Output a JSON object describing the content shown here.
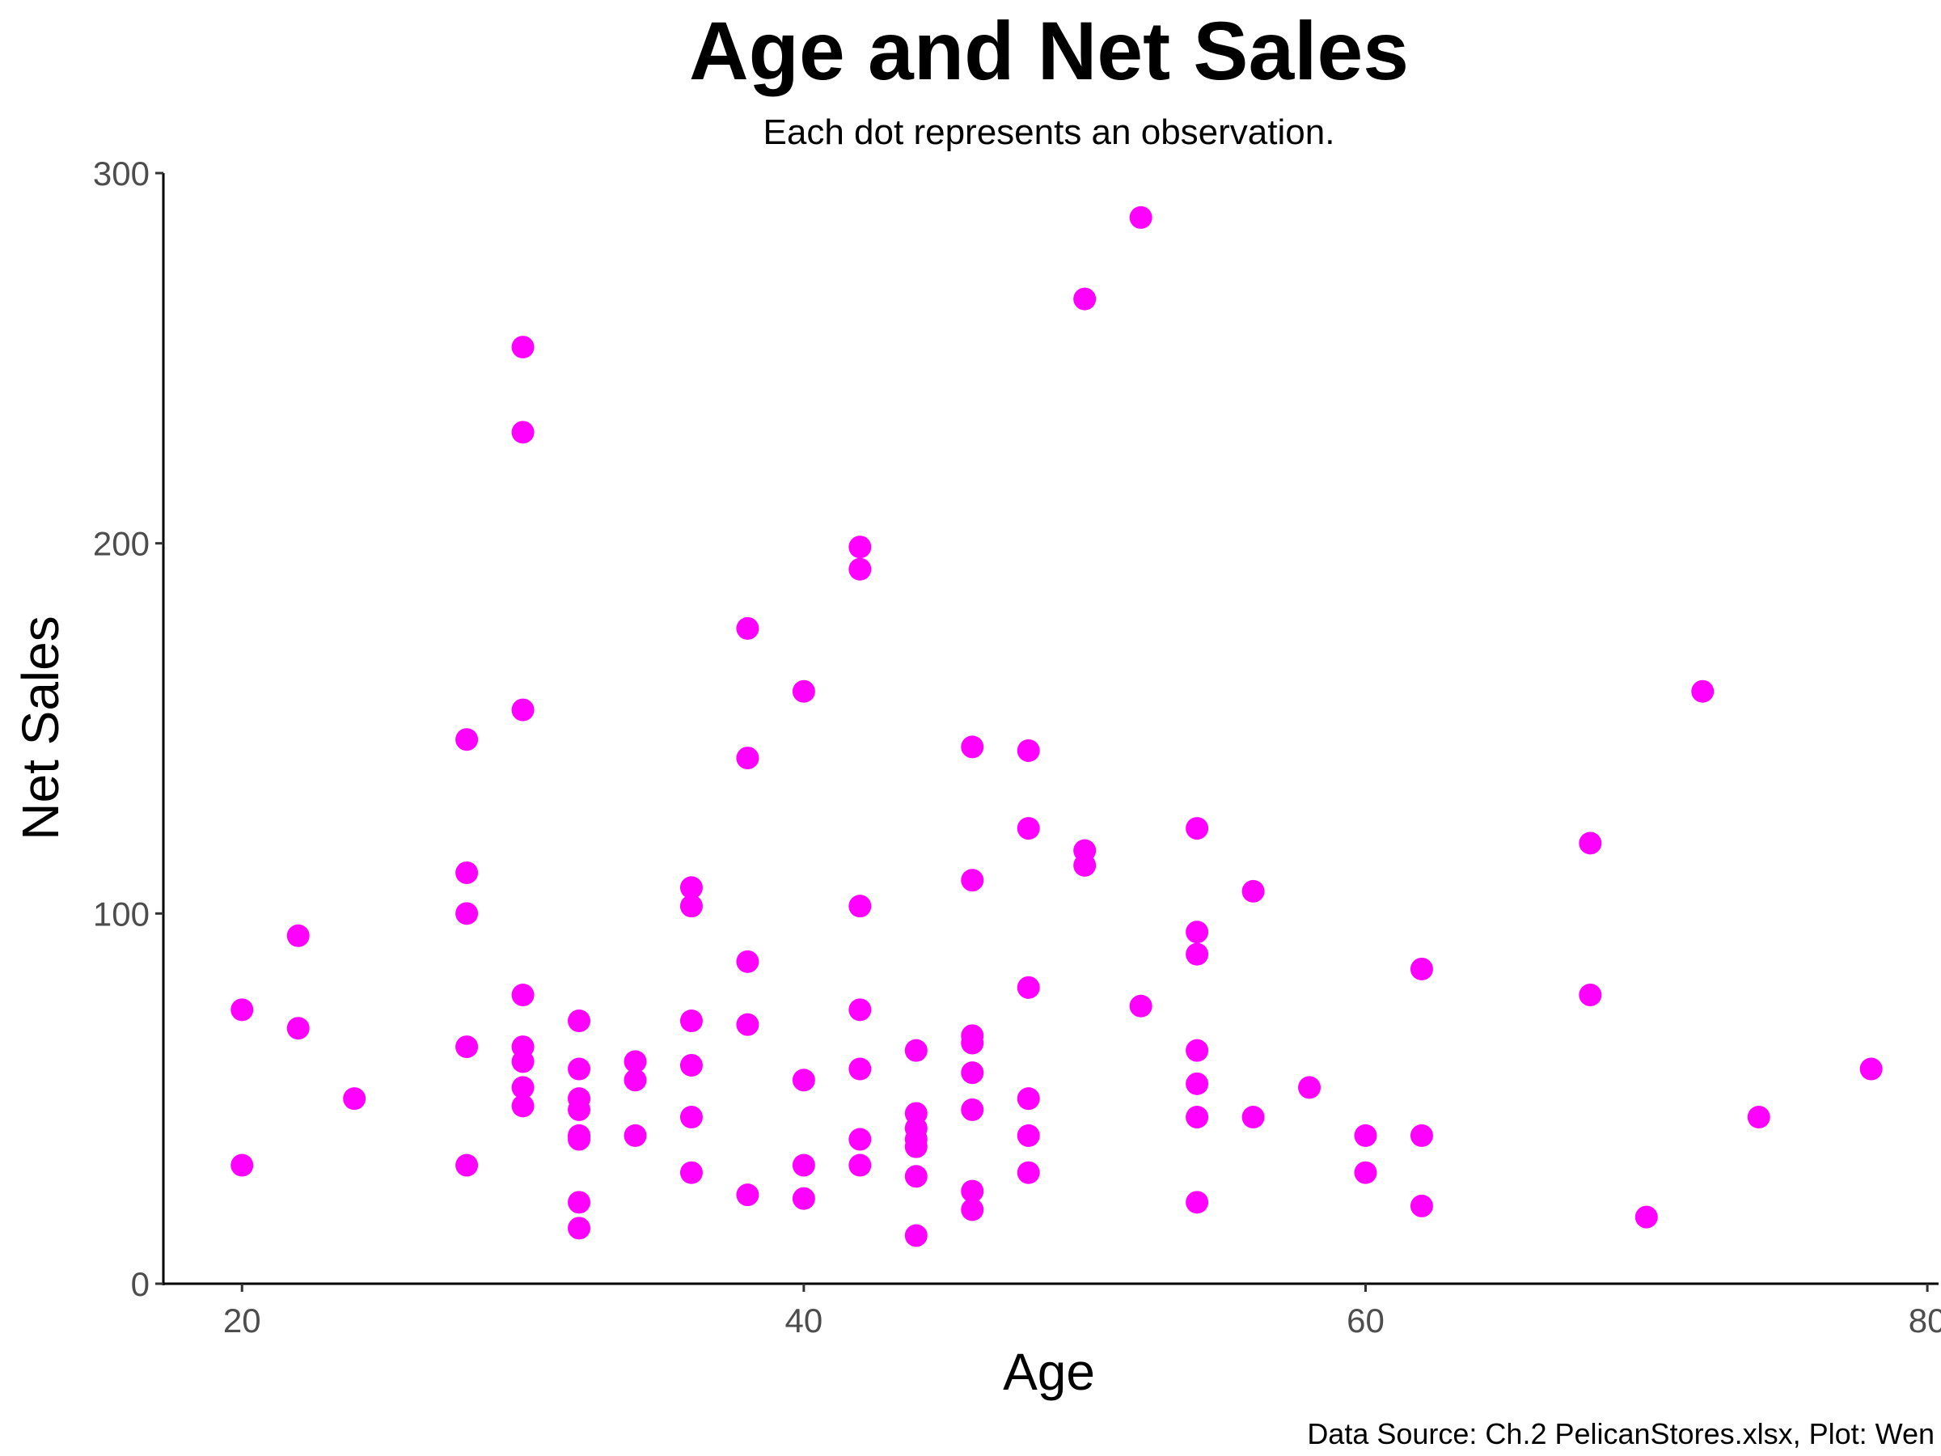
{
  "chart_data": {
    "type": "scatter",
    "title": "Age and Net Sales",
    "subtitle": "Each dot represents an observation.",
    "xlabel": "Age",
    "ylabel": "Net Sales",
    "caption": "Data Source: Ch.2 PelicanStores.xlsx, Plot: Wen",
    "xlim": [
      17.2,
      80.4
    ],
    "ylim": [
      0,
      300
    ],
    "xticks": [
      20,
      40,
      60,
      80
    ],
    "yticks": [
      0,
      100,
      200,
      300
    ],
    "grid": false,
    "point_color": "#FF00FF",
    "points": [
      [
        20,
        74
      ],
      [
        20,
        32
      ],
      [
        22,
        94
      ],
      [
        22,
        69
      ],
      [
        24,
        50
      ],
      [
        28,
        147
      ],
      [
        28,
        111
      ],
      [
        28,
        100
      ],
      [
        28,
        64
      ],
      [
        28,
        32
      ],
      [
        30,
        253
      ],
      [
        30,
        230
      ],
      [
        30,
        155
      ],
      [
        30,
        78
      ],
      [
        30,
        64
      ],
      [
        30,
        60
      ],
      [
        30,
        53
      ],
      [
        30,
        48
      ],
      [
        32,
        71
      ],
      [
        32,
        58
      ],
      [
        32,
        50
      ],
      [
        32,
        47
      ],
      [
        32,
        40
      ],
      [
        32,
        39
      ],
      [
        32,
        22
      ],
      [
        32,
        15
      ],
      [
        34,
        60
      ],
      [
        34,
        55
      ],
      [
        34,
        40
      ],
      [
        36,
        107
      ],
      [
        36,
        102
      ],
      [
        36,
        71
      ],
      [
        36,
        59
      ],
      [
        36,
        45
      ],
      [
        36,
        30
      ],
      [
        38,
        177
      ],
      [
        38,
        142
      ],
      [
        38,
        87
      ],
      [
        38,
        70
      ],
      [
        38,
        24
      ],
      [
        40,
        160
      ],
      [
        40,
        55
      ],
      [
        40,
        32
      ],
      [
        40,
        23
      ],
      [
        42,
        199
      ],
      [
        42,
        193
      ],
      [
        42,
        102
      ],
      [
        42,
        74
      ],
      [
        42,
        58
      ],
      [
        42,
        39
      ],
      [
        42,
        32
      ],
      [
        44,
        63
      ],
      [
        44,
        46
      ],
      [
        44,
        42
      ],
      [
        44,
        39
      ],
      [
        44,
        37
      ],
      [
        44,
        29
      ],
      [
        44,
        13
      ],
      [
        46,
        145
      ],
      [
        46,
        109
      ],
      [
        46,
        67
      ],
      [
        46,
        65
      ],
      [
        46,
        57
      ],
      [
        46,
        47
      ],
      [
        46,
        25
      ],
      [
        46,
        20
      ],
      [
        48,
        144
      ],
      [
        48,
        123
      ],
      [
        48,
        80
      ],
      [
        48,
        50
      ],
      [
        48,
        40
      ],
      [
        48,
        30
      ],
      [
        50,
        266
      ],
      [
        50,
        117
      ],
      [
        50,
        113
      ],
      [
        52,
        288
      ],
      [
        52,
        75
      ],
      [
        54,
        123
      ],
      [
        54,
        95
      ],
      [
        54,
        89
      ],
      [
        54,
        63
      ],
      [
        54,
        54
      ],
      [
        54,
        45
      ],
      [
        54,
        22
      ],
      [
        56,
        106
      ],
      [
        56,
        45
      ],
      [
        58,
        53
      ],
      [
        60,
        40
      ],
      [
        60,
        30
      ],
      [
        62,
        85
      ],
      [
        62,
        40
      ],
      [
        62,
        21
      ],
      [
        68,
        119
      ],
      [
        68,
        78
      ],
      [
        70,
        18
      ],
      [
        72,
        160
      ],
      [
        74,
        45
      ],
      [
        78,
        58
      ]
    ]
  }
}
